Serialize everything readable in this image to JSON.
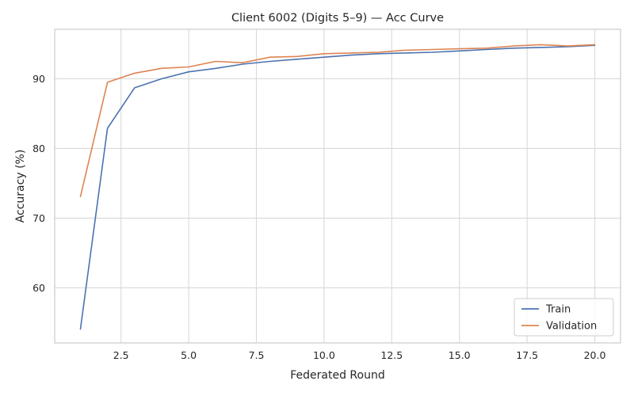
{
  "chart_data": {
    "type": "line",
    "title": "Client 6002 (Digits 5–9) — Acc Curve",
    "xlabel": "Federated Round",
    "ylabel": "Accuracy (%)",
    "xlim": [
      0.05,
      20.95
    ],
    "ylim": [
      52.1,
      97.1
    ],
    "xticks": [
      2.5,
      5.0,
      7.5,
      10.0,
      12.5,
      15.0,
      17.5,
      20.0
    ],
    "xtick_labels": [
      "2.5",
      "5.0",
      "7.5",
      "10.0",
      "12.5",
      "15.0",
      "17.5",
      "20.0"
    ],
    "yticks": [
      60,
      70,
      80,
      90
    ],
    "ytick_labels": [
      "60",
      "70",
      "80",
      "90"
    ],
    "grid": true,
    "legend_position": "bottom-right",
    "x": [
      1,
      2,
      3,
      4,
      5,
      6,
      7,
      8,
      9,
      10,
      11,
      12,
      13,
      14,
      15,
      16,
      17,
      18,
      19,
      20
    ],
    "series": [
      {
        "name": "Train",
        "color": "#4c72b0",
        "values": [
          54.1,
          82.9,
          88.7,
          90.0,
          91.0,
          91.5,
          92.1,
          92.5,
          92.8,
          93.1,
          93.4,
          93.6,
          93.7,
          93.8,
          94.0,
          94.2,
          94.4,
          94.5,
          94.6,
          94.8
        ]
      },
      {
        "name": "Validation",
        "color": "#dd8452",
        "values": [
          73.1,
          89.5,
          90.8,
          91.5,
          91.7,
          92.5,
          92.3,
          93.1,
          93.2,
          93.6,
          93.7,
          93.8,
          94.1,
          94.2,
          94.3,
          94.4,
          94.7,
          94.9,
          94.7,
          94.9
        ]
      }
    ]
  }
}
